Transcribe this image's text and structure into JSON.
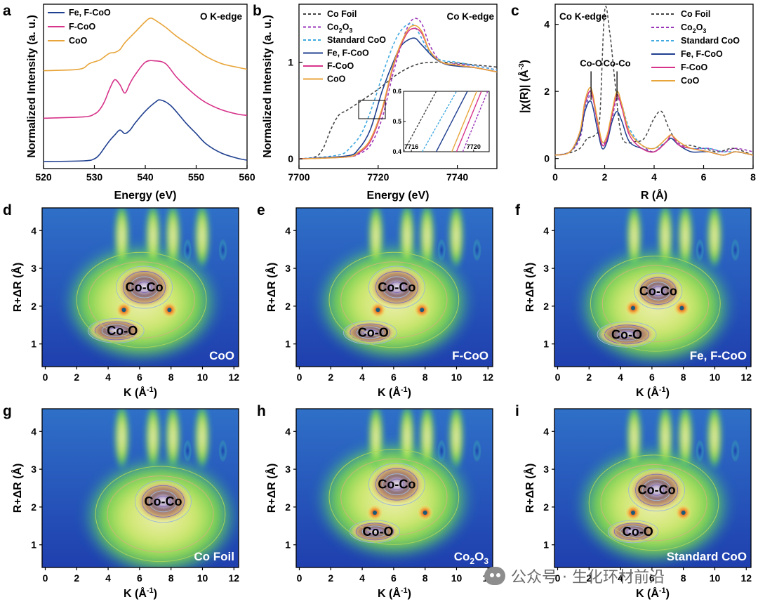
{
  "figure": {
    "panel_letters": [
      "a",
      "b",
      "c",
      "d",
      "e",
      "f",
      "g",
      "h",
      "i"
    ],
    "watermark": "公众号 · 生化环材前沿",
    "colors": {
      "fe_fcoo": "#1f3f8f",
      "fcoo": "#d6338a",
      "coo": "#e8a53a",
      "co_foil": "#444444",
      "co2o3": "#9a34b8",
      "standard_coo": "#3fa9e0"
    }
  },
  "chart_data": [
    {
      "id": "a",
      "type": "line",
      "title": "O K-edge",
      "xlabel": "Energy (eV)",
      "ylabel": "Normalized Intensity (a. u.)",
      "xlim": [
        520,
        560
      ],
      "xticks": [
        "520",
        "530",
        "540",
        "550",
        "560"
      ],
      "legend": [
        "Fe, F-CoO",
        "F-CoO",
        "CoO"
      ],
      "series": [
        {
          "name": "Fe, F-CoO",
          "offset": 0,
          "x": [
            520,
            528,
            530,
            531,
            532,
            533,
            534,
            535,
            536,
            537,
            538,
            540,
            542,
            543,
            545,
            548,
            550,
            552,
            555,
            558,
            560
          ],
          "y": [
            0.0,
            0.01,
            0.04,
            0.1,
            0.2,
            0.3,
            0.38,
            0.45,
            0.4,
            0.45,
            0.55,
            0.72,
            0.85,
            0.88,
            0.8,
            0.55,
            0.4,
            0.25,
            0.12,
            0.05,
            0.02
          ]
        },
        {
          "name": "F-CoO",
          "offset": 0.62,
          "x": [
            520,
            528,
            530,
            531,
            532,
            533,
            534,
            535,
            536,
            537,
            538,
            540,
            542,
            544,
            546,
            548,
            550,
            552,
            555,
            558,
            560
          ],
          "y": [
            0.0,
            0.02,
            0.06,
            0.12,
            0.24,
            0.42,
            0.55,
            0.48,
            0.36,
            0.5,
            0.62,
            0.8,
            0.82,
            0.78,
            0.6,
            0.45,
            0.32,
            0.22,
            0.12,
            0.06,
            0.04
          ]
        },
        {
          "name": "CoO",
          "offset": 1.3,
          "x": [
            520,
            527,
            529,
            531,
            532,
            533,
            534,
            535,
            536,
            538,
            540,
            541,
            542,
            544,
            546,
            548,
            550,
            552,
            555,
            558,
            560
          ],
          "y": [
            0.0,
            0.02,
            0.1,
            0.15,
            0.2,
            0.25,
            0.26,
            0.3,
            0.4,
            0.55,
            0.7,
            0.75,
            0.72,
            0.62,
            0.5,
            0.4,
            0.3,
            0.2,
            0.1,
            0.05,
            0.02
          ]
        }
      ]
    },
    {
      "id": "b",
      "type": "line",
      "title": "Co K-edge",
      "xlabel": "Energy (eV)",
      "ylabel": "Normalized Intensity (a. u.)",
      "xlim": [
        7700,
        7750
      ],
      "ylim": [
        -0.1,
        1.6
      ],
      "xticks": [
        "7700",
        "7720",
        "7740"
      ],
      "yticks": [
        "0",
        "1"
      ],
      "legend": [
        "Co Foil",
        "Co2O3",
        "Standard CoO",
        "Fe, F-CoO",
        "F-CoO",
        "CoO"
      ],
      "series": [
        {
          "name": "Co Foil",
          "x": [
            7700,
            7704,
            7706,
            7708,
            7710,
            7712,
            7715,
            7720,
            7725,
            7730,
            7735,
            7740,
            7745,
            7750
          ],
          "y": [
            0.0,
            0.02,
            0.1,
            0.3,
            0.45,
            0.5,
            0.58,
            0.72,
            0.88,
            0.98,
            1.0,
            0.99,
            0.97,
            0.95
          ]
        },
        {
          "name": "Co2O3",
          "x": [
            7700,
            7712,
            7715,
            7718,
            7721,
            7724,
            7727,
            7729,
            7731,
            7733,
            7736,
            7740,
            7745,
            7750
          ],
          "y": [
            0.0,
            0.02,
            0.05,
            0.14,
            0.42,
            0.92,
            1.32,
            1.45,
            1.4,
            1.18,
            1.0,
            0.98,
            0.96,
            0.92
          ]
        },
        {
          "name": "Standard CoO",
          "x": [
            7700,
            7710,
            7713,
            7716,
            7719,
            7722,
            7725,
            7728,
            7730,
            7733,
            7736,
            7740,
            7745,
            7750
          ],
          "y": [
            0.0,
            0.04,
            0.12,
            0.28,
            0.6,
            0.98,
            1.28,
            1.4,
            1.32,
            1.1,
            1.02,
            1.0,
            0.96,
            0.92
          ]
        },
        {
          "name": "Fe, F-CoO",
          "x": [
            7700,
            7712,
            7715,
            7718,
            7721,
            7724,
            7726,
            7729,
            7731,
            7734,
            7737,
            7740,
            7745,
            7750
          ],
          "y": [
            0.0,
            0.03,
            0.1,
            0.3,
            0.7,
            1.02,
            1.18,
            1.25,
            1.18,
            1.05,
            0.98,
            0.96,
            0.94,
            0.9
          ]
        },
        {
          "name": "F-CoO",
          "x": [
            7700,
            7712,
            7715,
            7718,
            7721,
            7724,
            7727,
            7729,
            7731,
            7733,
            7736,
            7740,
            7745,
            7750
          ],
          "y": [
            0.0,
            0.02,
            0.06,
            0.18,
            0.5,
            0.98,
            1.28,
            1.35,
            1.3,
            1.12,
            1.0,
            0.97,
            0.94,
            0.9
          ]
        },
        {
          "name": "CoO",
          "x": [
            7700,
            7712,
            7715,
            7718,
            7721,
            7724,
            7727,
            7729,
            7731,
            7733,
            7736,
            7740,
            7745,
            7750
          ],
          "y": [
            0.0,
            0.02,
            0.07,
            0.2,
            0.52,
            1.0,
            1.3,
            1.38,
            1.32,
            1.12,
            1.0,
            0.97,
            0.94,
            0.9
          ]
        }
      ],
      "inset": {
        "xlim": [
          7715.5,
          7721
        ],
        "ylim": [
          0.4,
          0.6
        ],
        "xticks": [
          "7716",
          "7720"
        ],
        "yticks": [
          "0.4",
          "0.5",
          "0.6"
        ],
        "lines": [
          {
            "name": "Co Foil",
            "x0": 7715.5,
            "x1": 7717.6
          },
          {
            "name": "Standard CoO",
            "x0": 7716.7,
            "x1": 7718.9
          },
          {
            "name": "Fe, F-CoO",
            "x0": 7717.6,
            "x1": 7719.6
          },
          {
            "name": "CoO",
            "x0": 7718.6,
            "x1": 7720.2
          },
          {
            "name": "F-CoO",
            "x0": 7718.9,
            "x1": 7720.5
          },
          {
            "name": "Co2O3",
            "x0": 7719.3,
            "x1": 7720.9
          }
        ]
      }
    },
    {
      "id": "c",
      "type": "line",
      "title": "Co K-edge",
      "xlabel": "R (Å)",
      "ylabel": "|χ(R)| (Å-3)",
      "xlim": [
        0,
        8
      ],
      "ylim": [
        -0.3,
        4.6
      ],
      "xticks": [
        "0",
        "2",
        "4",
        "6",
        "8"
      ],
      "yticks": [
        "0",
        "2",
        "4"
      ],
      "legend": [
        "Co Foil",
        "Co2O3",
        "Standard CoO",
        "Fe, F-CoO",
        "F-CoO",
        "CoO"
      ],
      "annotations": [
        {
          "text": "Co-O",
          "x": 1.45
        },
        {
          "text": "Co-Co",
          "x": 2.5
        }
      ],
      "series": [
        {
          "name": "Co Foil",
          "x": [
            0,
            0.5,
            1.0,
            1.3,
            1.6,
            1.8,
            2.0,
            2.2,
            2.4,
            2.6,
            2.8,
            3.2,
            3.6,
            4.0,
            4.3,
            4.6,
            5.0,
            5.4,
            6.0,
            6.6,
            7.2,
            8.0
          ],
          "y": [
            0.1,
            0.15,
            0.3,
            0.6,
            0.7,
            1.2,
            4.4,
            3.8,
            2.4,
            1.0,
            0.5,
            0.5,
            0.6,
            1.2,
            1.4,
            0.9,
            0.4,
            0.4,
            0.3,
            0.2,
            0.3,
            0.1
          ]
        },
        {
          "name": "Co2O3",
          "x": [
            0,
            0.6,
            1.0,
            1.2,
            1.45,
            1.7,
            1.9,
            2.1,
            2.3,
            2.5,
            2.7,
            3.0,
            3.5,
            4.0,
            4.5,
            4.7,
            5.0,
            5.5,
            6.2,
            6.8,
            7.3,
            8.0
          ],
          "y": [
            0.1,
            0.2,
            0.6,
            1.4,
            1.9,
            1.2,
            0.4,
            0.7,
            1.2,
            1.8,
            1.5,
            0.8,
            0.4,
            0.2,
            0.5,
            0.7,
            0.45,
            0.3,
            0.3,
            0.2,
            0.3,
            0.2
          ]
        },
        {
          "name": "Standard CoO",
          "x": [
            0,
            0.6,
            1.0,
            1.2,
            1.45,
            1.7,
            1.9,
            2.1,
            2.3,
            2.5,
            2.7,
            3.0,
            3.5,
            4.0,
            4.5,
            4.7,
            5.0,
            5.5,
            6.2,
            6.8,
            7.3,
            8.0
          ],
          "y": [
            0.1,
            0.2,
            0.7,
            1.5,
            2.0,
            1.1,
            0.4,
            0.6,
            1.3,
            2.0,
            1.6,
            0.9,
            0.4,
            0.3,
            0.5,
            0.6,
            0.4,
            0.3,
            0.3,
            0.2,
            0.2,
            0.1
          ]
        },
        {
          "name": "Fe, F-CoO",
          "x": [
            0,
            0.6,
            1.0,
            1.2,
            1.45,
            1.7,
            1.9,
            2.1,
            2.3,
            2.5,
            2.7,
            3.0,
            3.5,
            4.0,
            4.5,
            4.7,
            5.0,
            5.5,
            6.2,
            6.8,
            7.3,
            8.0
          ],
          "y": [
            0.1,
            0.2,
            0.7,
            1.4,
            1.7,
            0.9,
            0.3,
            0.5,
            1.1,
            1.4,
            1.1,
            0.5,
            0.3,
            0.2,
            0.5,
            0.6,
            0.4,
            0.2,
            0.2,
            0.1,
            0.2,
            0.1
          ]
        },
        {
          "name": "F-CoO",
          "x": [
            0,
            0.6,
            1.0,
            1.2,
            1.45,
            1.7,
            1.9,
            2.1,
            2.3,
            2.5,
            2.7,
            3.0,
            3.5,
            4.0,
            4.5,
            4.7,
            5.0,
            5.5,
            6.2,
            6.8,
            7.3,
            8.0
          ],
          "y": [
            0.1,
            0.2,
            0.8,
            1.6,
            2.0,
            1.1,
            0.4,
            0.6,
            1.3,
            1.9,
            1.5,
            0.7,
            0.3,
            0.2,
            0.5,
            0.7,
            0.4,
            0.3,
            0.2,
            0.1,
            0.2,
            0.1
          ]
        },
        {
          "name": "CoO",
          "x": [
            0,
            0.6,
            1.0,
            1.2,
            1.45,
            1.7,
            1.9,
            2.1,
            2.3,
            2.5,
            2.7,
            3.0,
            3.5,
            4.0,
            4.5,
            4.7,
            5.0,
            5.5,
            6.2,
            6.8,
            7.3,
            8.0
          ],
          "y": [
            0.1,
            0.2,
            0.8,
            1.7,
            2.1,
            1.2,
            0.5,
            0.7,
            1.4,
            2.0,
            1.6,
            0.8,
            0.4,
            0.3,
            0.6,
            0.7,
            0.5,
            0.3,
            0.2,
            0.1,
            0.2,
            0.1
          ]
        }
      ]
    },
    {
      "id": "wt",
      "type": "heatmap",
      "description_of_axes": "wavelet transform",
      "xlabel": "K (Å-1)",
      "ylabel": "R+ΔR (Å)",
      "xlim": [
        -0.2,
        12.3
      ],
      "ylim": [
        0.4,
        4.6
      ],
      "xticks": [
        "0",
        "2",
        "4",
        "6",
        "8",
        "10",
        "12"
      ],
      "yticks": [
        "1",
        "2",
        "3",
        "4"
      ],
      "panels": [
        {
          "id": "d",
          "sample": "CoO",
          "annotations": [
            {
              "text": "Co-Co",
              "k": 6.3,
              "r": 2.5
            },
            {
              "text": "Co-O",
              "k": 4.9,
              "r": 1.35
            }
          ],
          "peaks": [
            {
              "k": 6.3,
              "r": 2.5,
              "i": 1.0
            },
            {
              "k": 4.5,
              "r": 1.35,
              "i": 0.95
            },
            {
              "k": 5.0,
              "r": 1.9,
              "i": 0.6
            },
            {
              "k": 7.9,
              "r": 1.9,
              "i": 0.6
            }
          ]
        },
        {
          "id": "e",
          "sample": "F-CoO",
          "annotations": [
            {
              "text": "Co-Co",
              "k": 6.2,
              "r": 2.5
            },
            {
              "text": "Co-O",
              "k": 4.7,
              "r": 1.3
            }
          ],
          "peaks": [
            {
              "k": 6.2,
              "r": 2.5,
              "i": 1.0
            },
            {
              "k": 4.5,
              "r": 1.3,
              "i": 0.9
            },
            {
              "k": 5.0,
              "r": 1.9,
              "i": 0.6
            },
            {
              "k": 7.8,
              "r": 1.9,
              "i": 0.6
            }
          ]
        },
        {
          "id": "f",
          "sample": "Fe, F-CoO",
          "annotations": [
            {
              "text": "Co-Co",
              "k": 6.4,
              "r": 2.4
            },
            {
              "text": "Co-O",
              "k": 4.4,
              "r": 1.25
            }
          ],
          "peaks": [
            {
              "k": 6.4,
              "r": 2.4,
              "i": 0.85
            },
            {
              "k": 4.4,
              "r": 1.25,
              "i": 1.0
            },
            {
              "k": 4.8,
              "r": 1.95,
              "i": 0.55
            },
            {
              "k": 7.9,
              "r": 1.95,
              "i": 0.55
            }
          ]
        },
        {
          "id": "g",
          "sample": "Co Foil",
          "annotations": [
            {
              "text": "Co-Co",
              "k": 7.5,
              "r": 2.15
            }
          ],
          "peaks": [
            {
              "k": 7.5,
              "r": 2.15,
              "i": 1.0
            }
          ]
        },
        {
          "id": "h",
          "sample": "Co2O3",
          "annotations": [
            {
              "text": "Co-Co",
              "k": 6.2,
              "r": 2.6
            },
            {
              "text": "Co-O",
              "k": 5.0,
              "r": 1.35
            }
          ],
          "peaks": [
            {
              "k": 6.2,
              "r": 2.6,
              "i": 1.0
            },
            {
              "k": 4.8,
              "r": 1.35,
              "i": 0.85
            },
            {
              "k": 4.8,
              "r": 1.85,
              "i": 0.55
            },
            {
              "k": 8.0,
              "r": 1.85,
              "i": 0.5
            }
          ]
        },
        {
          "id": "i",
          "sample": "Standard CoO",
          "annotations": [
            {
              "text": "Co-Co",
              "k": 6.3,
              "r": 2.45
            },
            {
              "text": "Co-O",
              "k": 5.1,
              "r": 1.35
            }
          ],
          "peaks": [
            {
              "k": 6.3,
              "r": 2.45,
              "i": 1.0
            },
            {
              "k": 4.8,
              "r": 1.35,
              "i": 0.85
            },
            {
              "k": 4.8,
              "r": 1.85,
              "i": 0.55
            },
            {
              "k": 8.0,
              "r": 1.85,
              "i": 0.5
            }
          ]
        }
      ]
    }
  ]
}
